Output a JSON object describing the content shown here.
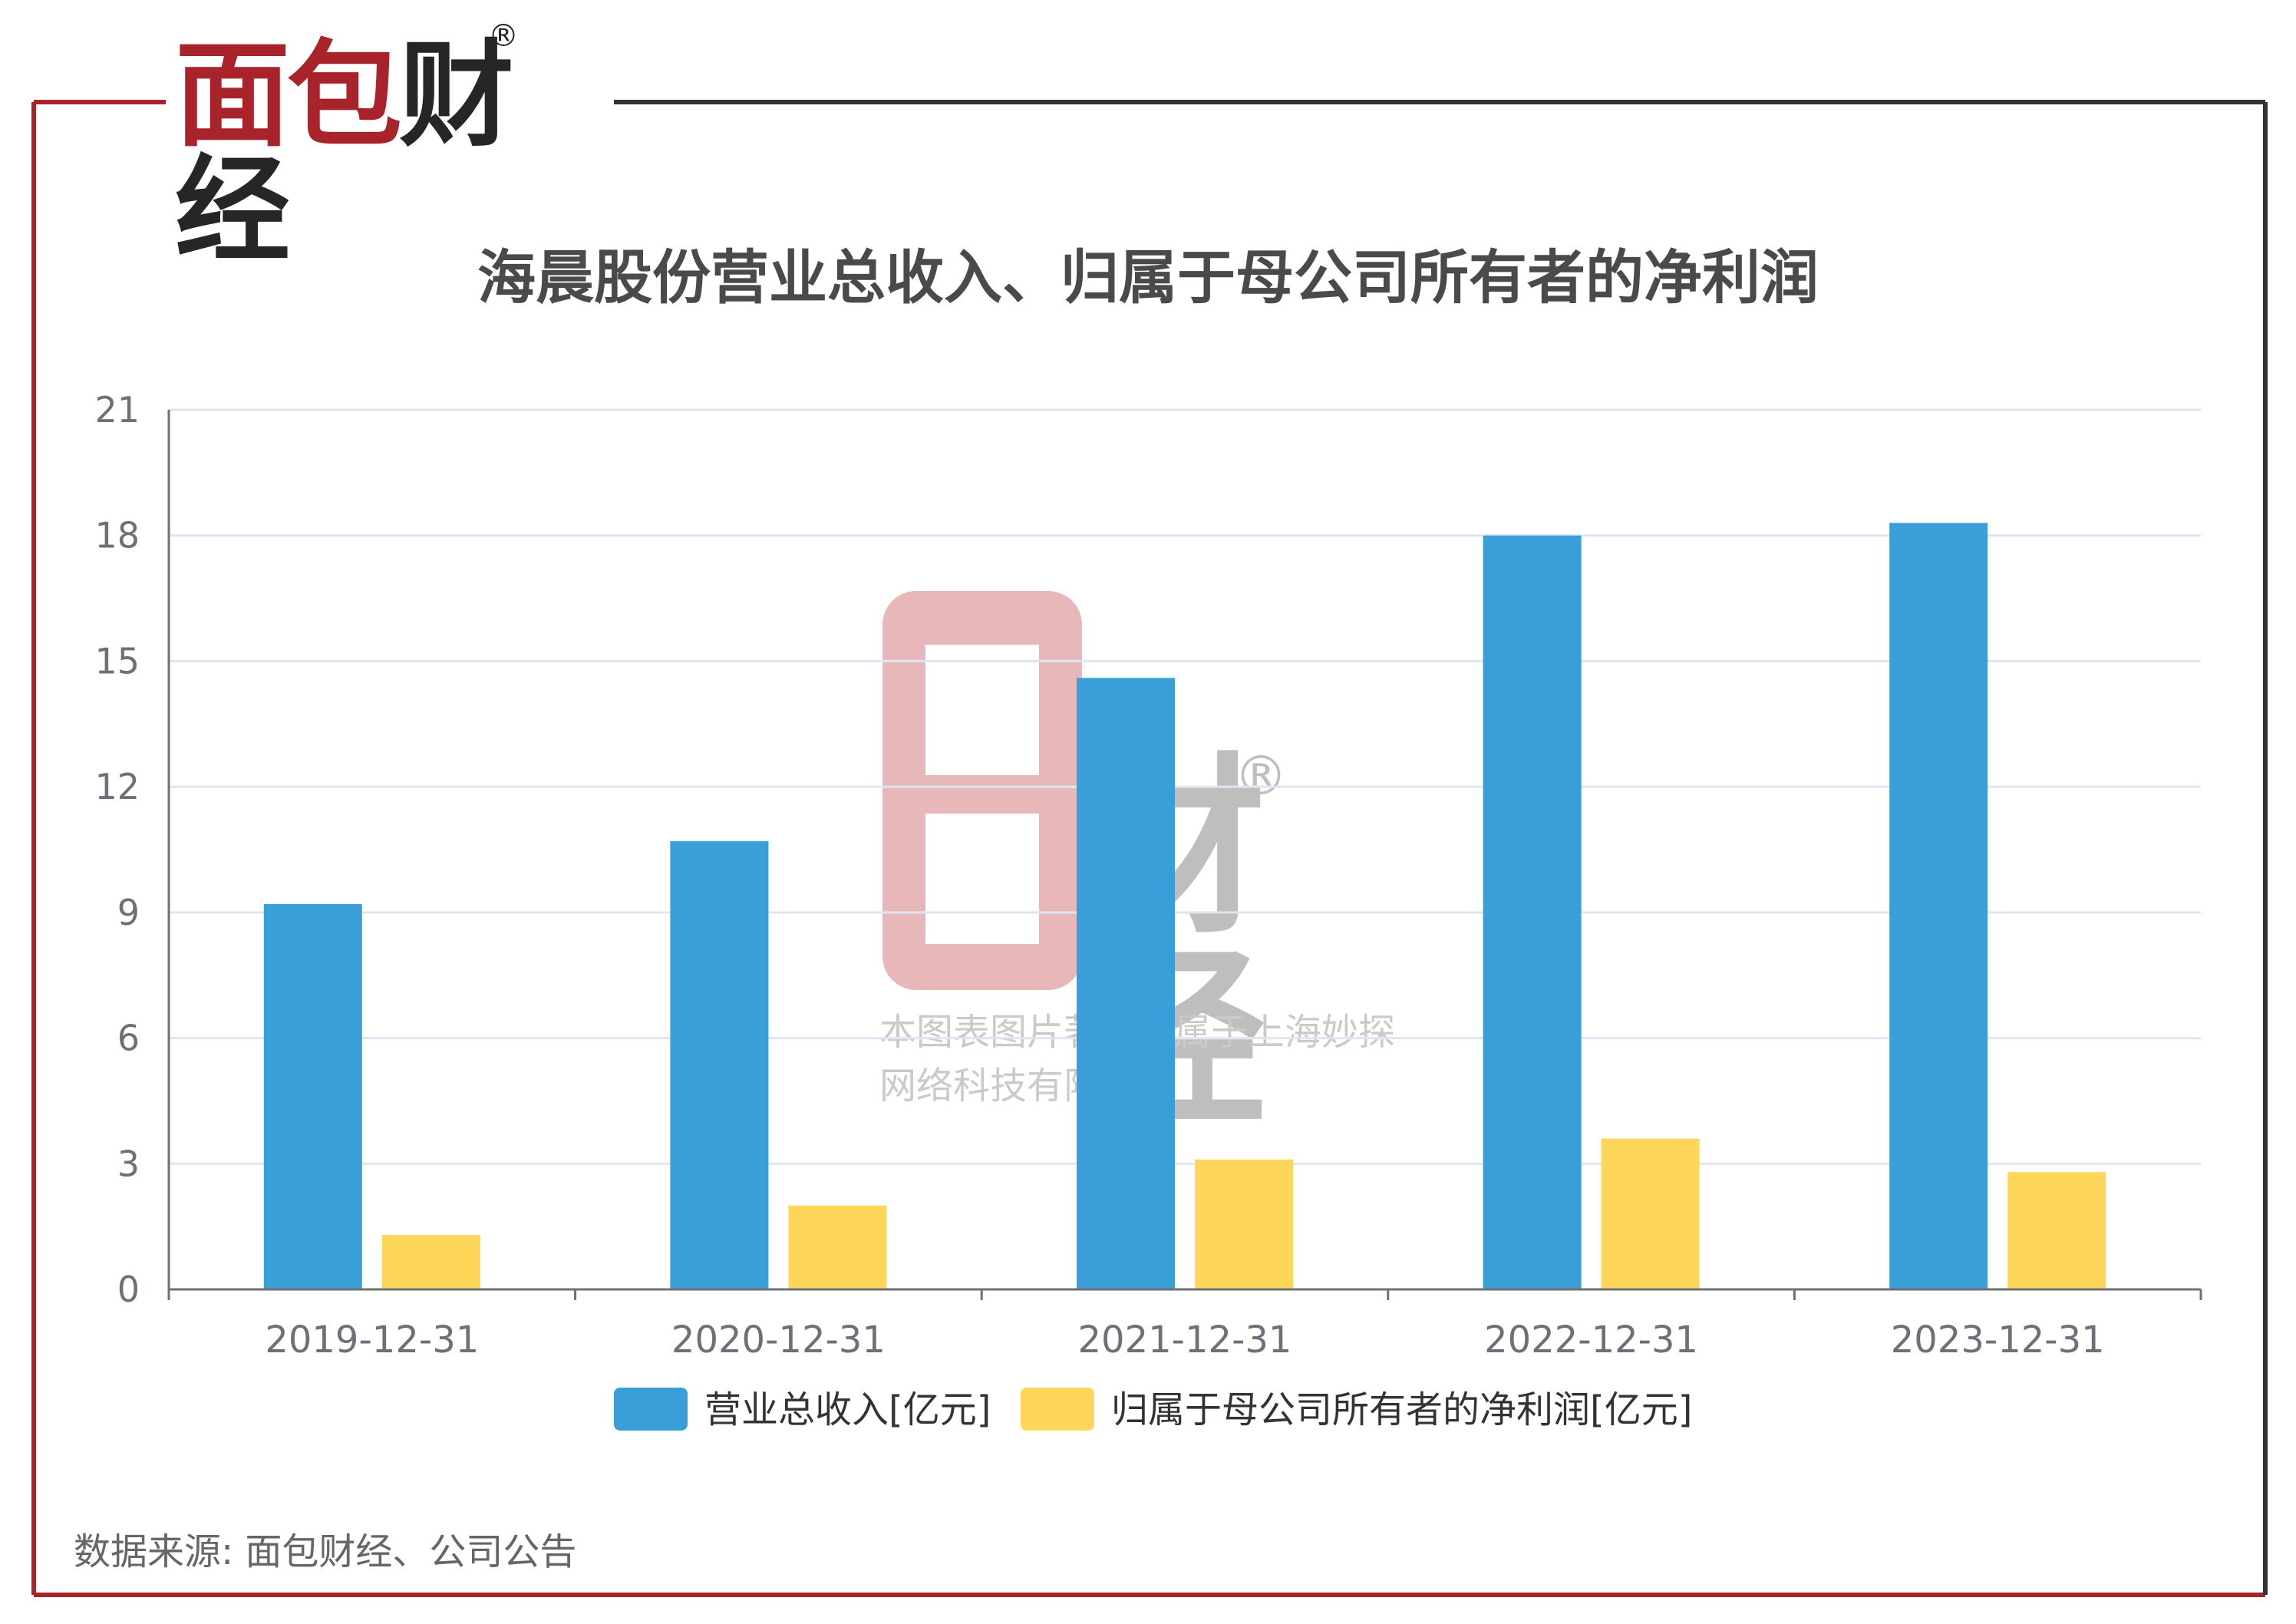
{
  "brand": {
    "logo_part1": "面包",
    "logo_part2": "财经",
    "reg_mark": "®"
  },
  "watermark": {
    "chars": "财经",
    "reg_mark": "®",
    "note_line1": "本图表图片著作权属于上海妙探",
    "note_line2": "网络科技有限公司"
  },
  "source": "数据来源: 面包财经、公司公告",
  "colors": {
    "frame_red": "#a8232a",
    "frame_dark": "#333333",
    "series_blue": "#3a9fd9",
    "series_yellow": "#fdd65a",
    "grid": "#dfe6f2",
    "axis": "#6e7079"
  },
  "chart_data": {
    "type": "bar",
    "title": "海晨股份营业总收入、归属于母公司所有者的净利润",
    "categories": [
      "2019-12-31",
      "2020-12-31",
      "2021-12-31",
      "2022-12-31",
      "2023-12-31"
    ],
    "series": [
      {
        "name": "营业总收入[亿元]",
        "values": [
          9.2,
          10.7,
          14.6,
          18.0,
          18.3
        ]
      },
      {
        "name": "归属于母公司所有者的净利润[亿元]",
        "values": [
          1.3,
          2.0,
          3.1,
          3.6,
          2.8
        ]
      }
    ],
    "y_ticks": [
      "0",
      "3",
      "6",
      "9",
      "12",
      "15",
      "18",
      "21"
    ],
    "ylim": [
      0,
      21
    ],
    "grid": true,
    "legend_position": "bottom-center"
  }
}
